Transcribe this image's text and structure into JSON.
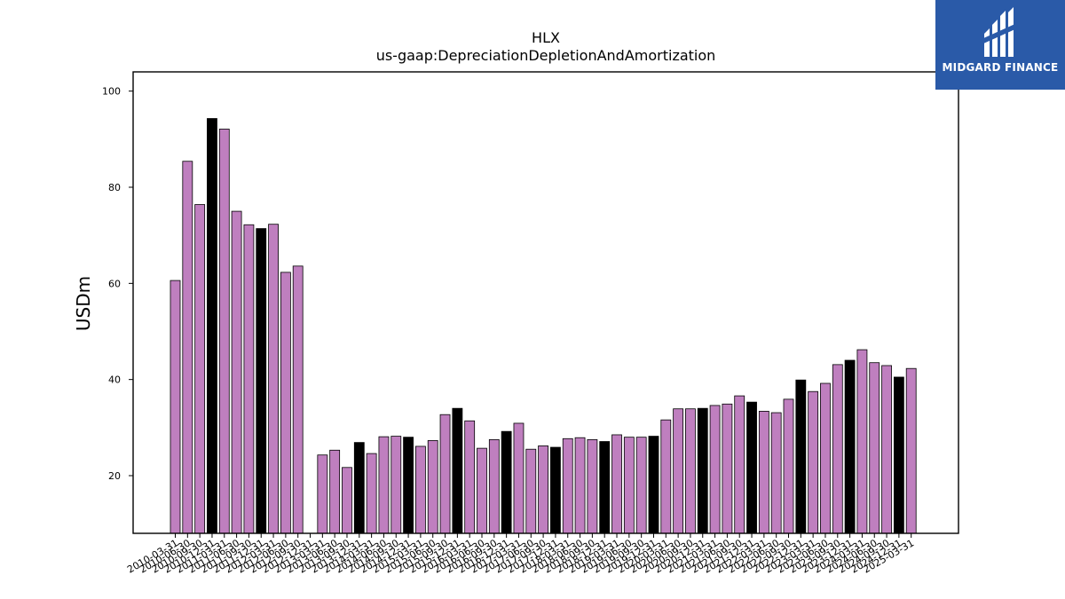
{
  "brand": {
    "name": "MIDGARD FINANCE",
    "color": "#2a5aa8"
  },
  "chart_data": {
    "type": "bar",
    "title": "HLX",
    "subtitle": "us-gaap:DepreciationDepletionAndAmortization",
    "ylabel": "USDm",
    "ylim": [
      8,
      104
    ],
    "yticks": [
      20,
      40,
      60,
      80,
      100
    ],
    "grid": false,
    "colors": {
      "quarter": "#bf7fbf",
      "annual": "#000000"
    },
    "categories": [
      "2010-03-31",
      "2010-06-30",
      "2010-09-30",
      "2010-12-31",
      "2011-03-31",
      "2011-06-30",
      "2011-09-30",
      "2011-12-31",
      "2012-03-31",
      "2012-06-30",
      "2012-09-30",
      "2012-12-31",
      "2013-03-31",
      "2013-06-30",
      "2013-09-30",
      "2013-12-31",
      "2014-03-31",
      "2014-06-30",
      "2014-09-30",
      "2014-12-31",
      "2015-03-31",
      "2015-06-30",
      "2015-09-30",
      "2015-12-31",
      "2016-03-31",
      "2016-06-30",
      "2016-09-30",
      "2016-12-31",
      "2017-03-31",
      "2017-06-30",
      "2017-09-30",
      "2017-12-31",
      "2018-03-31",
      "2018-06-30",
      "2018-09-30",
      "2018-12-31",
      "2019-03-31",
      "2019-06-30",
      "2019-09-30",
      "2019-12-31",
      "2020-03-31",
      "2020-06-30",
      "2020-09-30",
      "2020-12-31",
      "2021-03-31",
      "2021-06-30",
      "2021-09-30",
      "2021-12-31",
      "2022-03-31",
      "2022-06-30",
      "2022-09-30",
      "2022-12-31",
      "2023-03-31",
      "2023-06-30",
      "2023-09-30",
      "2023-12-31",
      "2024-03-31",
      "2024-06-30",
      "2024-09-30",
      "2024-12-31",
      "2025-03-31"
    ],
    "values": [
      60.6,
      85.4,
      76.4,
      94.3,
      92.1,
      75.0,
      72.2,
      71.4,
      72.3,
      62.3,
      63.6,
      null,
      24.3,
      25.3,
      21.7,
      26.9,
      24.6,
      28.1,
      28.2,
      28.0,
      26.1,
      27.3,
      32.7,
      34.0,
      31.4,
      25.7,
      27.5,
      29.2,
      30.9,
      25.5,
      26.2,
      25.9,
      27.7,
      27.9,
      27.5,
      27.1,
      28.5,
      28.0,
      28.0,
      28.2,
      31.6,
      33.9,
      33.9,
      34.0,
      34.6,
      34.9,
      36.6,
      35.3,
      33.4,
      33.1,
      35.9,
      39.9,
      37.5,
      39.2,
      43.1,
      44.0,
      46.2,
      43.5,
      42.9,
      40.5,
      42.3
    ],
    "is_annual": [
      false,
      false,
      false,
      true,
      false,
      false,
      false,
      true,
      false,
      false,
      false,
      true,
      false,
      false,
      false,
      true,
      false,
      false,
      false,
      true,
      false,
      false,
      false,
      true,
      false,
      false,
      false,
      true,
      false,
      false,
      false,
      true,
      false,
      false,
      false,
      true,
      false,
      false,
      false,
      true,
      false,
      false,
      false,
      true,
      false,
      false,
      false,
      true,
      false,
      false,
      false,
      true,
      false,
      false,
      false,
      true,
      false,
      false,
      false,
      true,
      false
    ]
  }
}
